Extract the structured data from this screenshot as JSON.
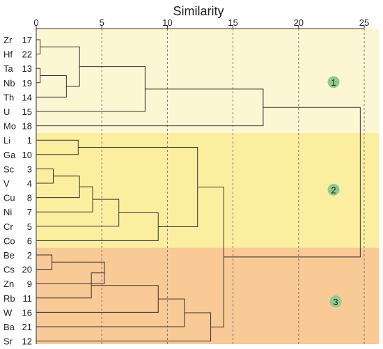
{
  "chart_data": {
    "type": "dendrogram",
    "title": "",
    "xlabel": "Similarity",
    "ylabel": "",
    "xlim": [
      0,
      25
    ],
    "x_ticks": [
      0,
      5,
      10,
      15,
      20,
      25
    ],
    "grid": "vertical dashed lines at 5, 10, 15, 20, 25",
    "leaves": [
      {
        "element": "Zr",
        "id": "17"
      },
      {
        "element": "Hf",
        "id": "22"
      },
      {
        "element": "Ta",
        "id": "13"
      },
      {
        "element": "Nb",
        "id": "19"
      },
      {
        "element": "Th",
        "id": "14"
      },
      {
        "element": "U",
        "id": "15"
      },
      {
        "element": "Mo",
        "id": "18"
      },
      {
        "element": "Li",
        "id": "1"
      },
      {
        "element": "Ga",
        "id": "10"
      },
      {
        "element": "Sc",
        "id": "3"
      },
      {
        "element": "V",
        "id": "4"
      },
      {
        "element": "Cu",
        "id": "8"
      },
      {
        "element": "Ni",
        "id": "7"
      },
      {
        "element": "Cr",
        "id": "5"
      },
      {
        "element": "Co",
        "id": "6"
      },
      {
        "element": "Be",
        "id": "2"
      },
      {
        "element": "Cs",
        "id": "20"
      },
      {
        "element": "Zn",
        "id": "9"
      },
      {
        "element": "Rb",
        "id": "11"
      },
      {
        "element": "W",
        "id": "16"
      },
      {
        "element": "Ba",
        "id": "21"
      },
      {
        "element": "Sr",
        "id": "12"
      }
    ],
    "merges": [
      {
        "a": "L0",
        "b": "L1",
        "distance": 0.3,
        "id": "Zr-Hf"
      },
      {
        "a": "L2",
        "b": "L3",
        "distance": 0.3,
        "id": "Ta-Nb"
      },
      {
        "a": "Ta-Nb",
        "b": "L4",
        "distance": 2.3,
        "id": "Ta-Nb-Th"
      },
      {
        "a": "Zr-Hf",
        "b": "Ta-Nb-Th",
        "distance": 3.3,
        "id": "Zr-Th"
      },
      {
        "a": "Zr-Th",
        "b": "L5",
        "distance": 8.3,
        "id": "Zr-U"
      },
      {
        "a": "Zr-U",
        "b": "L6",
        "distance": 17.3,
        "id": "G1"
      },
      {
        "a": "L7",
        "b": "L8",
        "distance": 3.2,
        "id": "Li-Ga"
      },
      {
        "a": "L9",
        "b": "L10",
        "distance": 1.3,
        "id": "Sc-V"
      },
      {
        "a": "Sc-V",
        "b": "L11",
        "distance": 3.3,
        "id": "Sc-Cu"
      },
      {
        "a": "Sc-Cu",
        "b": "L12",
        "distance": 4.3,
        "id": "Sc-Ni"
      },
      {
        "a": "Sc-Ni",
        "b": "L13",
        "distance": 6.3,
        "id": "Sc-Cr"
      },
      {
        "a": "Sc-Cr",
        "b": "L14",
        "distance": 9.3,
        "id": "Sc-Co"
      },
      {
        "a": "Li-Ga",
        "b": "Sc-Co",
        "distance": 12.3,
        "id": "G2"
      },
      {
        "a": "L15",
        "b": "L16",
        "distance": 1.2,
        "id": "Be-Cs"
      },
      {
        "a": "Be-Cs",
        "b": "L17",
        "distance": 5.2,
        "id": "Be-Zn"
      },
      {
        "a": "Be-Zn",
        "b": "L18",
        "distance": 4.2,
        "id": "Be-Rb"
      },
      {
        "a": "Be-Rb",
        "b": "L19",
        "distance": 9.3,
        "id": "Be-W"
      },
      {
        "a": "Be-W",
        "b": "L20",
        "distance": 11.3,
        "id": "Be-Ba"
      },
      {
        "a": "Be-Ba",
        "b": "L21",
        "distance": 13.3,
        "id": "G3"
      },
      {
        "a": "G2",
        "b": "G3",
        "distance": 14.3,
        "id": "G23"
      },
      {
        "a": "G1",
        "b": "G23",
        "distance": 24.7,
        "id": "root"
      }
    ],
    "groups": [
      {
        "label": "1",
        "from_leaf": 0,
        "to_leaf": 6,
        "color": "#fdf6d3"
      },
      {
        "label": "2",
        "from_leaf": 7,
        "to_leaf": 14,
        "color": "#fbee9f"
      },
      {
        "label": "3",
        "from_leaf": 15,
        "to_leaf": 21,
        "color": "#f9c996"
      }
    ],
    "marker_color": "#8fca8f"
  }
}
